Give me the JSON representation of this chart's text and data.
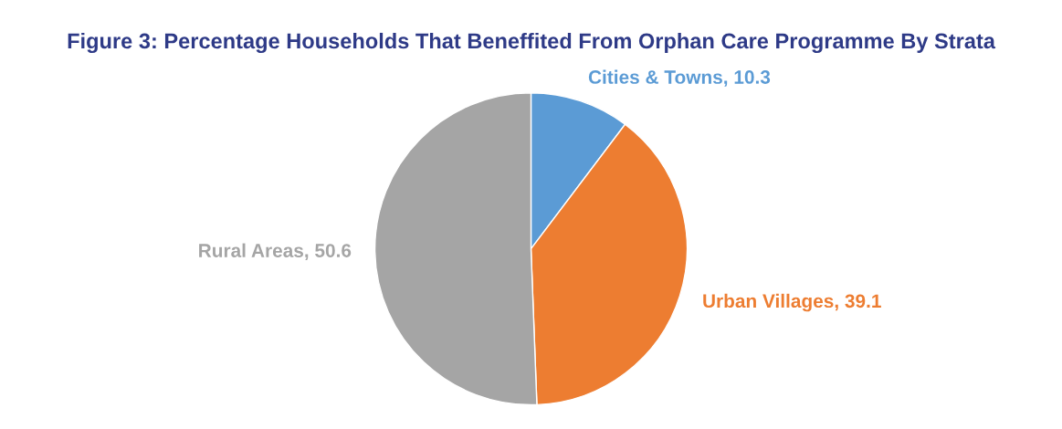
{
  "chart_data": {
    "type": "pie",
    "title": "Figure 3: Percentage Households That Beneffited From Orphan Care Programme By Strata",
    "categories": [
      "Cities & Towns",
      "Urban Villages",
      "Rural Areas"
    ],
    "values": [
      10.3,
      39.1,
      50.6
    ],
    "colors": [
      "#5b9bd5",
      "#ed7d31",
      "#a5a5a5"
    ],
    "value_labels": [
      ", 10.3",
      ", 39.1",
      ", 50.6"
    ],
    "legend": false
  }
}
